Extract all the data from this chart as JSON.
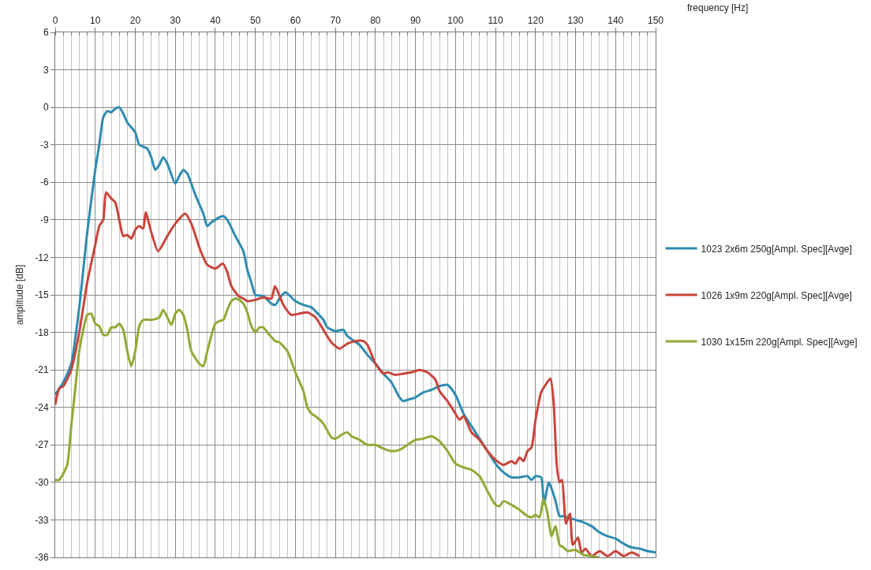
{
  "chart_data": {
    "type": "line",
    "xlabel": "frequency [Hz]",
    "ylabel": "amplitude [dB]",
    "xlim": [
      0,
      150
    ],
    "xticks": [
      0,
      10,
      20,
      30,
      40,
      50,
      60,
      70,
      80,
      90,
      100,
      110,
      120,
      130,
      140,
      150
    ],
    "ylim": [
      -36,
      6
    ],
    "yticks": [
      -36,
      -33,
      -30,
      -27,
      -24,
      -21,
      -18,
      -15,
      -12,
      -9,
      -6,
      -3,
      0,
      3,
      6
    ],
    "grid": true,
    "legend": "right",
    "marker": "none",
    "line_style": "solid",
    "series": [
      {
        "name": "1023 2x6m 250g[Ampl. Spec][Avge]",
        "color": "#2e8bb0",
        "x": [
          0,
          1,
          2,
          4,
          6,
          8,
          10,
          11,
          12,
          13,
          14,
          15,
          16,
          17,
          18,
          20,
          21,
          23,
          24,
          25,
          26,
          27,
          28,
          30,
          31,
          32,
          33,
          35,
          37,
          38,
          39,
          40,
          41,
          42,
          43,
          45,
          47,
          48,
          49,
          50,
          52,
          54,
          55,
          56,
          57.5,
          60,
          62,
          64,
          65,
          67,
          68,
          70,
          72,
          73,
          76,
          78,
          80,
          82,
          84,
          86,
          87,
          88,
          90,
          92,
          94,
          96,
          98,
          100,
          102,
          104,
          106,
          108,
          110,
          112,
          114,
          116,
          118,
          119,
          120,
          121.4,
          122.1,
          123.3,
          124,
          125,
          126,
          127,
          128,
          130,
          132,
          134,
          136,
          138,
          140,
          142,
          144,
          146,
          148,
          150
        ],
        "values": [
          -23,
          -22.5,
          -22,
          -20.5,
          -16,
          -10,
          -5,
          -3,
          -0.8,
          -0.3,
          -0.4,
          -0.1,
          0,
          -0.5,
          -1.2,
          -2,
          -3,
          -3.3,
          -4,
          -5,
          -4.6,
          -4,
          -4.5,
          -6.1,
          -5.5,
          -5,
          -5.3,
          -7,
          -8.5,
          -9.5,
          -9.2,
          -9,
          -8.8,
          -8.7,
          -9,
          -10.3,
          -11.5,
          -13,
          -14,
          -15,
          -15.1,
          -15.7,
          -15.8,
          -15.3,
          -14.8,
          -15.5,
          -15.8,
          -16,
          -16.3,
          -17,
          -17.6,
          -17.9,
          -17.8,
          -18.3,
          -19,
          -19.8,
          -20.5,
          -21.3,
          -22,
          -23.2,
          -23.5,
          -23.4,
          -23.2,
          -22.8,
          -22.6,
          -22.3,
          -22.2,
          -23,
          -24.5,
          -25.5,
          -26.5,
          -27.5,
          -28.5,
          -29.2,
          -29.6,
          -29.6,
          -29.5,
          -29.8,
          -29.5,
          -29.6,
          -31.7,
          -30,
          -30.5,
          -31.5,
          -32.7,
          -32.7,
          -32.8,
          -33,
          -33.2,
          -33.5,
          -34,
          -34.3,
          -34.5,
          -34.9,
          -35.2,
          -35.3,
          -35.5,
          -35.6
        ]
      },
      {
        "name": "1026 1x9m 220g[Ampl. Spec][Avge]",
        "color": "#c8443a",
        "x": [
          0,
          1,
          2,
          4,
          6,
          8,
          10,
          11,
          12,
          12.7,
          14,
          15,
          16,
          17,
          18,
          19,
          20,
          21,
          22,
          22.6,
          24,
          25.7,
          28,
          30,
          32.5,
          34,
          36,
          37,
          38,
          40,
          41.9,
          43,
          44,
          45.8,
          47,
          48,
          50,
          52,
          54,
          54.9,
          57,
          59,
          61,
          63,
          65,
          67,
          69,
          71,
          73,
          75,
          77,
          78,
          80,
          82,
          83,
          85,
          87,
          89,
          91,
          93,
          95,
          96,
          98,
          100,
          101,
          102,
          104,
          106,
          108,
          110,
          112,
          114,
          115,
          116,
          117,
          118,
          119,
          120,
          121.4,
          122.3,
          123.7,
          124.5,
          125.3,
          126,
          126.6,
          127.6,
          128.6,
          129.3,
          130.6,
          131.5,
          132.5,
          134,
          136,
          138,
          140,
          142,
          144,
          146
        ],
        "values": [
          -23.8,
          -22.5,
          -22.3,
          -21,
          -18,
          -14,
          -11,
          -9.5,
          -9,
          -6.8,
          -7.3,
          -7.6,
          -9,
          -10.3,
          -10.2,
          -10.5,
          -9.8,
          -9.5,
          -9.7,
          -8.4,
          -10,
          -11.5,
          -10.3,
          -9.3,
          -8.5,
          -9.3,
          -11.2,
          -12,
          -12.6,
          -12.9,
          -12.5,
          -13.2,
          -14.3,
          -15.1,
          -15.3,
          -15.5,
          -15.4,
          -15.2,
          -15.3,
          -14.3,
          -15.8,
          -16.6,
          -16.5,
          -16.4,
          -16.8,
          -17.8,
          -18.8,
          -19.3,
          -18.9,
          -18.7,
          -18.7,
          -19,
          -20.5,
          -21.3,
          -21.2,
          -21.4,
          -21.3,
          -21.2,
          -21,
          -21.2,
          -21.8,
          -22.7,
          -23.5,
          -24.5,
          -25,
          -24.7,
          -26,
          -26.6,
          -27.5,
          -28.2,
          -28.6,
          -28.3,
          -28.5,
          -28,
          -28.3,
          -27.5,
          -27.2,
          -25,
          -22.8,
          -22.3,
          -21.7,
          -23.5,
          -28.6,
          -30,
          -29.8,
          -33.3,
          -32.5,
          -35,
          -34.4,
          -35.6,
          -35.3,
          -35.9,
          -35.5,
          -35.9,
          -35.5,
          -35.9,
          -35.6,
          -35.9
        ]
      },
      {
        "name": "1030 1x15m 220g[Ampl. Spec][Avge]",
        "color": "#8faa35",
        "x": [
          0,
          1,
          2,
          3,
          4,
          5,
          6,
          7,
          8,
          9,
          10,
          11,
          12,
          13,
          14,
          15,
          16,
          17,
          18,
          19,
          20,
          21,
          22,
          24,
          26,
          27,
          29,
          30,
          31,
          32,
          33,
          34,
          36,
          37,
          38,
          40,
          41,
          42,
          43,
          44,
          45,
          46,
          47,
          48,
          49,
          50,
          51,
          52,
          53,
          55,
          56,
          58,
          60,
          62,
          63,
          64,
          65,
          67,
          69,
          70,
          72,
          73,
          74,
          76,
          78,
          80,
          82,
          84,
          86,
          88,
          90,
          92,
          94,
          96,
          98,
          100,
          102,
          104,
          106,
          108,
          110,
          111,
          112,
          114,
          116,
          118,
          119,
          120,
          121,
          122,
          123,
          124,
          125,
          126,
          127,
          128,
          130,
          132,
          134,
          136
        ],
        "values": [
          -29.8,
          -29.8,
          -29.3,
          -28.6,
          -25.5,
          -22.5,
          -19.5,
          -17.8,
          -16.6,
          -16.5,
          -17.3,
          -17.5,
          -18.2,
          -18.2,
          -17.6,
          -17.6,
          -17.3,
          -17.8,
          -19.5,
          -20.7,
          -19.5,
          -17.5,
          -17,
          -17,
          -16.8,
          -16.2,
          -17.4,
          -16.5,
          -16.2,
          -16.6,
          -17.8,
          -19.5,
          -20.5,
          -20.7,
          -19.5,
          -17.3,
          -17.1,
          -17,
          -16.2,
          -15.5,
          -15.3,
          -15.4,
          -15.7,
          -16.4,
          -17.5,
          -18,
          -17.6,
          -17.6,
          -18,
          -18.7,
          -18.8,
          -19.5,
          -21.2,
          -22.7,
          -24,
          -24.5,
          -24.7,
          -25.3,
          -26.4,
          -26.5,
          -26.1,
          -26,
          -26.3,
          -26.6,
          -27,
          -27,
          -27.3,
          -27.5,
          -27.4,
          -27,
          -26.6,
          -26.5,
          -26.3,
          -26.7,
          -27.5,
          -28.5,
          -28.8,
          -29,
          -29.5,
          -30.7,
          -31.8,
          -31.9,
          -31.5,
          -31.8,
          -32.2,
          -32.7,
          -32.8,
          -32.6,
          -32.8,
          -31.3,
          -32.5,
          -34.3,
          -33.5,
          -35,
          -35.2,
          -35.5,
          -35.4,
          -35.8,
          -35.9,
          -36
        ]
      }
    ]
  }
}
